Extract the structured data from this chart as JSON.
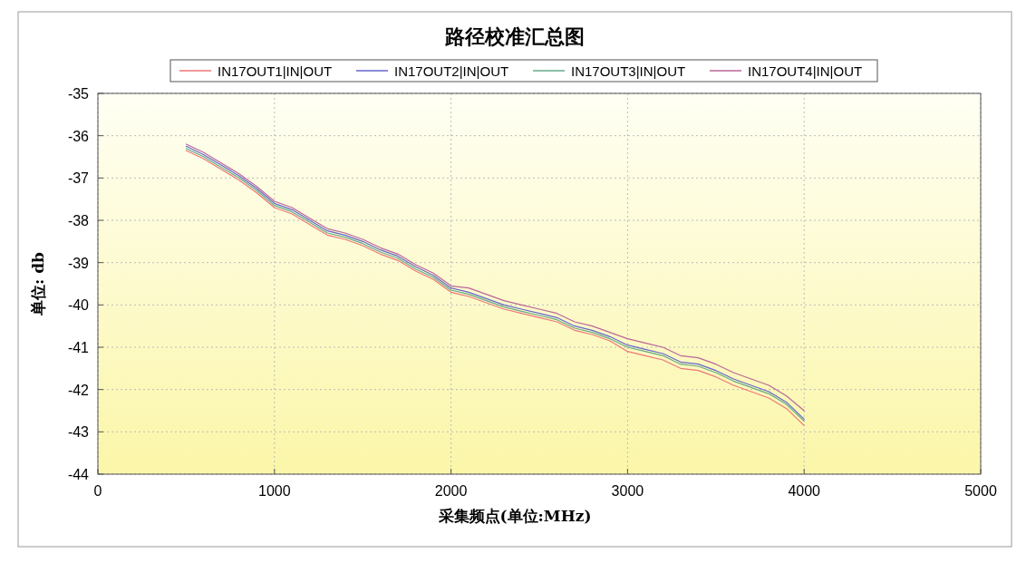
{
  "chart_data": {
    "type": "line",
    "title": "路径校准汇总图",
    "xlabel": "采集频点(单位:MHz)",
    "ylabel": "单位: db",
    "xlim": [
      0,
      5000
    ],
    "xticks": [
      0,
      1000,
      2000,
      3000,
      4000,
      5000
    ],
    "ylim": [
      -44,
      -35
    ],
    "yticks": [
      -44,
      -43,
      -42,
      -41,
      -40,
      -39,
      -38,
      -37,
      -36,
      -35
    ],
    "grid": true,
    "legend": "top",
    "marker": "none",
    "line_style": "solid",
    "x": [
      500,
      600,
      700,
      800,
      900,
      1000,
      1100,
      1200,
      1300,
      1400,
      1500,
      1600,
      1700,
      1800,
      1900,
      2000,
      2100,
      2200,
      2300,
      2400,
      2500,
      2600,
      2700,
      2800,
      2900,
      3000,
      3100,
      3200,
      3300,
      3400,
      3500,
      3600,
      3700,
      3800,
      3900,
      4000
    ],
    "series": [
      {
        "name": "IN17OUT1|IN|OUT",
        "color": "#ee7777",
        "values": [
          -36.35,
          -36.55,
          -36.8,
          -37.05,
          -37.35,
          -37.7,
          -37.85,
          -38.1,
          -38.35,
          -38.45,
          -38.6,
          -38.8,
          -38.95,
          -39.2,
          -39.4,
          -39.7,
          -39.8,
          -39.95,
          -40.1,
          -40.2,
          -40.3,
          -40.4,
          -40.6,
          -40.7,
          -40.85,
          -41.1,
          -41.2,
          -41.3,
          -41.5,
          -41.55,
          -41.7,
          -41.9,
          -42.05,
          -42.2,
          -42.45,
          -42.85
        ]
      },
      {
        "name": "IN17OUT2|IN|OUT",
        "color": "#6666cc",
        "values": [
          -36.25,
          -36.45,
          -36.7,
          -36.95,
          -37.25,
          -37.6,
          -37.75,
          -38.0,
          -38.25,
          -38.35,
          -38.5,
          -38.7,
          -38.85,
          -39.1,
          -39.3,
          -39.6,
          -39.7,
          -39.85,
          -40.0,
          -40.1,
          -40.2,
          -40.3,
          -40.5,
          -40.6,
          -40.75,
          -40.95,
          -41.05,
          -41.15,
          -41.35,
          -41.4,
          -41.55,
          -41.75,
          -41.9,
          -42.05,
          -42.3,
          -42.7
        ]
      },
      {
        "name": "IN17OUT3|IN|OUT",
        "color": "#66aa88",
        "values": [
          -36.3,
          -36.5,
          -36.75,
          -37.0,
          -37.3,
          -37.65,
          -37.8,
          -38.05,
          -38.3,
          -38.4,
          -38.55,
          -38.75,
          -38.9,
          -39.15,
          -39.35,
          -39.65,
          -39.75,
          -39.9,
          -40.05,
          -40.15,
          -40.25,
          -40.35,
          -40.55,
          -40.65,
          -40.8,
          -41.0,
          -41.1,
          -41.2,
          -41.4,
          -41.45,
          -41.6,
          -41.8,
          -41.95,
          -42.1,
          -42.35,
          -42.75
        ]
      },
      {
        "name": "IN17OUT4|IN|OUT",
        "color": "#bb6699",
        "values": [
          -36.2,
          -36.4,
          -36.65,
          -36.9,
          -37.2,
          -37.55,
          -37.7,
          -37.95,
          -38.2,
          -38.3,
          -38.45,
          -38.65,
          -38.8,
          -39.05,
          -39.25,
          -39.55,
          -39.6,
          -39.75,
          -39.9,
          -40.0,
          -40.1,
          -40.2,
          -40.4,
          -40.5,
          -40.65,
          -40.8,
          -40.9,
          -41.0,
          -41.2,
          -41.25,
          -41.4,
          -41.6,
          -41.75,
          -41.9,
          -42.15,
          -42.5
        ]
      }
    ]
  }
}
